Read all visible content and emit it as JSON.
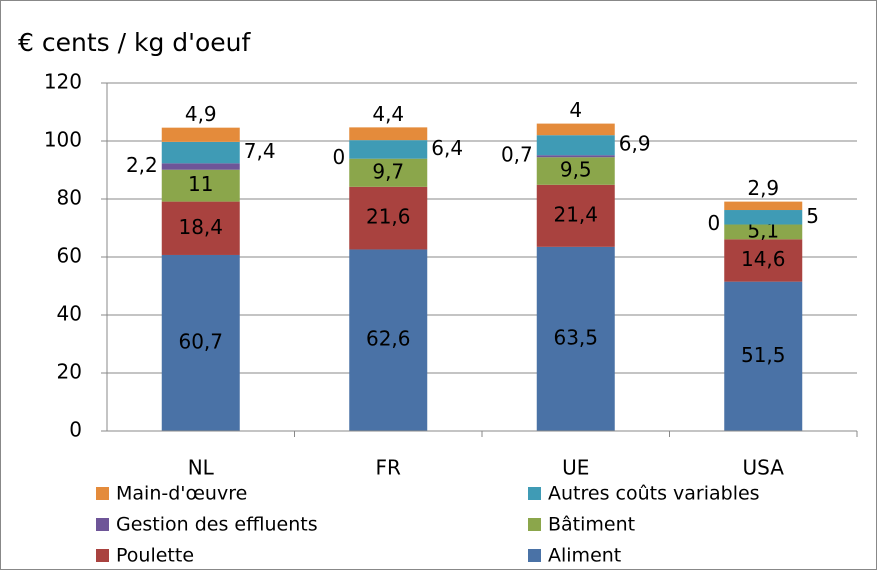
{
  "chart_data": {
    "type": "stacked_bar",
    "title": "€ cents / kg d'oeuf",
    "categories": [
      "NL",
      "FR",
      "UE",
      "USA"
    ],
    "series": [
      {
        "name": "Aliment",
        "color": "#4a72a6",
        "values": [
          60.7,
          62.6,
          63.5,
          51.5
        ],
        "value_labels": [
          "60,7",
          "62,6",
          "63,5",
          "51,5"
        ]
      },
      {
        "name": "Poulette",
        "color": "#a9423f",
        "values": [
          18.4,
          21.6,
          21.4,
          14.6
        ],
        "value_labels": [
          "18,4",
          "21,6",
          "21,4",
          "14,6"
        ]
      },
      {
        "name": "Bâtiment",
        "color": "#8ba64b",
        "values": [
          11,
          9.7,
          9.5,
          5.1
        ],
        "value_labels": [
          "11",
          "9,7",
          "9,5",
          "5,1"
        ]
      },
      {
        "name": "Gestion des effluents",
        "color": "#6e5598",
        "values": [
          2.2,
          0,
          0.7,
          0
        ],
        "value_labels": [
          "2,2",
          "0",
          "0,7",
          "0"
        ]
      },
      {
        "name": "Autres coûts variables",
        "color": "#3f9bb5",
        "values": [
          7.4,
          6.4,
          6.9,
          5
        ],
        "value_labels": [
          "7,4",
          "6,4",
          "6,9",
          "5"
        ]
      },
      {
        "name": "Main-d'œuvre",
        "color": "#e48b3b",
        "values": [
          4.9,
          4.4,
          4,
          2.9
        ],
        "value_labels": [
          "4,9",
          "4,4",
          "4",
          "2,9"
        ]
      }
    ],
    "ylim": [
      0,
      120
    ],
    "yticks": [
      0,
      20,
      40,
      60,
      80,
      100,
      120
    ],
    "grid": true,
    "legend": "bottom"
  }
}
